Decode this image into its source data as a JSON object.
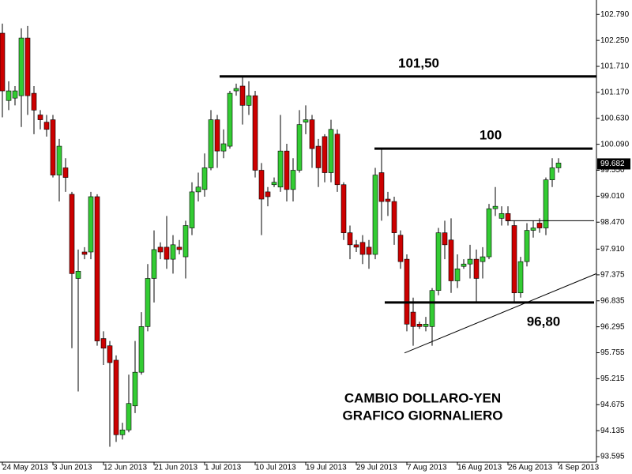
{
  "chart_data": {
    "type": "candlestick",
    "title": "CAMBIO DOLLARO-YEN",
    "subtitle": "GRAFICO GIORNALIERO",
    "up_color": "#33cc33",
    "down_color": "#cc0000",
    "categories": [
      "24 May 2013",
      null,
      null,
      null,
      null,
      null,
      null,
      null,
      "3 Jun 2013",
      null,
      null,
      null,
      null,
      null,
      null,
      null,
      "12 Jun 2013",
      null,
      null,
      null,
      null,
      null,
      null,
      null,
      "21 Jun 2013",
      null,
      null,
      null,
      null,
      null,
      null,
      null,
      "1 Jul 2013",
      null,
      null,
      null,
      null,
      null,
      null,
      null,
      "10 Jul 2013",
      null,
      null,
      null,
      null,
      null,
      null,
      null,
      "19 Jul 2013",
      null,
      null,
      null,
      null,
      null,
      null,
      null,
      "29 Jul 2013",
      null,
      null,
      null,
      null,
      null,
      null,
      null,
      "7 Aug 2013",
      null,
      null,
      null,
      null,
      null,
      null,
      null,
      "16 Aug 2013",
      null,
      null,
      null,
      null,
      null,
      null,
      null,
      "26 Aug 2013",
      null,
      null,
      null,
      null,
      null,
      null,
      null,
      "4 Sep 2013"
    ],
    "open": [
      102.4,
      101.0,
      101.05,
      101.1,
      102.3,
      101.15,
      100.7,
      100.55,
      100.6,
      99.45,
      99.6,
      99.05,
      97.3,
      97.85,
      97.85,
      99.0,
      96.05,
      95.9,
      95.6,
      94.05,
      94.15,
      94.65,
      95.35,
      96.3,
      97.3,
      97.95,
      97.95,
      97.7,
      97.95,
      97.75,
      98.35,
      99.1,
      99.15,
      99.6,
      100.6,
      99.95,
      100.05,
      101.2,
      101.3,
      100.9,
      101.1,
      99.55,
      99.1,
      99.25,
      99.2,
      99.95,
      99.15,
      99.55,
      100.55,
      100.6,
      100.05,
      100.25,
      99.5,
      100.3,
      99.25,
      98.25,
      98.0,
      98.05,
      97.95,
      97.8,
      99.5,
      98.95,
      98.9,
      98.2,
      97.7,
      96.6,
      96.35,
      96.3,
      96.3,
      97.05,
      98.25,
      98.1,
      97.25,
      97.55,
      97.6,
      97.7,
      97.65,
      97.75,
      98.75,
      98.55,
      98.65,
      98.4,
      97.0,
      97.65,
      98.3,
      98.45,
      98.35,
      99.35,
      99.6
    ],
    "high": [
      102.6,
      101.4,
      101.3,
      102.5,
      102.55,
      101.3,
      100.8,
      100.7,
      100.7,
      100.2,
      99.8,
      99.1,
      97.9,
      97.95,
      99.1,
      99.05,
      96.2,
      96.0,
      95.7,
      94.3,
      95.3,
      96.0,
      96.6,
      97.6,
      98.3,
      98.05,
      98.6,
      98.2,
      98.1,
      98.5,
      99.3,
      99.5,
      99.9,
      100.8,
      100.7,
      100.4,
      101.2,
      101.35,
      101.5,
      101.4,
      101.2,
      99.7,
      99.2,
      99.4,
      100.7,
      100.1,
      99.8,
      100.8,
      100.9,
      100.7,
      100.2,
      100.3,
      100.6,
      100.4,
      99.3,
      98.4,
      98.1,
      98.2,
      98.1,
      99.6,
      100.0,
      99.1,
      99.0,
      98.3,
      97.8,
      96.9,
      96.4,
      96.5,
      97.1,
      98.35,
      98.5,
      98.55,
      97.8,
      97.7,
      98.0,
      97.9,
      97.95,
      98.85,
      99.2,
      98.8,
      98.8,
      98.5,
      97.75,
      98.45,
      98.5,
      98.55,
      99.4,
      99.8,
      99.8
    ],
    "low": [
      100.65,
      100.8,
      100.9,
      100.45,
      100.7,
      100.3,
      100.4,
      100.25,
      99.4,
      98.9,
      99.1,
      95.85,
      94.95,
      97.7,
      97.7,
      95.9,
      95.5,
      93.8,
      93.9,
      93.95,
      94.1,
      94.5,
      95.3,
      96.2,
      96.8,
      97.7,
      97.5,
      97.4,
      97.8,
      97.3,
      98.2,
      98.9,
      99.0,
      99.55,
      99.6,
      99.8,
      100.0,
      101.1,
      100.5,
      100.7,
      99.4,
      98.2,
      98.8,
      99.2,
      99.1,
      98.9,
      98.9,
      99.5,
      100.3,
      99.6,
      99.2,
      99.3,
      99.3,
      99.1,
      98.1,
      97.7,
      97.85,
      97.6,
      97.5,
      97.7,
      98.5,
      98.6,
      98.0,
      97.5,
      96.2,
      95.9,
      96.25,
      96.2,
      95.9,
      96.95,
      97.7,
      97.0,
      97.1,
      97.5,
      97.3,
      96.8,
      97.3,
      97.7,
      98.6,
      98.4,
      98.4,
      96.8,
      96.9,
      97.55,
      98.15,
      98.25,
      98.2,
      99.2,
      99.5
    ],
    "close": [
      101.2,
      101.2,
      101.2,
      102.3,
      101.1,
      100.8,
      100.6,
      100.4,
      99.45,
      100.05,
      99.4,
      97.4,
      97.45,
      97.8,
      99.0,
      96.0,
      95.85,
      95.55,
      94.05,
      94.15,
      94.7,
      95.35,
      96.3,
      97.3,
      97.9,
      97.85,
      97.7,
      98.0,
      97.9,
      98.4,
      99.1,
      99.2,
      99.6,
      100.6,
      99.95,
      100.1,
      101.15,
      101.25,
      100.9,
      101.1,
      99.55,
      98.95,
      99.0,
      99.3,
      99.95,
      99.15,
      99.55,
      100.5,
      100.6,
      100.0,
      99.6,
      99.5,
      100.4,
      99.25,
      98.25,
      98.0,
      97.95,
      97.8,
      97.8,
      99.45,
      98.9,
      98.9,
      98.25,
      97.65,
      96.35,
      96.3,
      96.3,
      96.35,
      97.05,
      98.25,
      98.0,
      97.25,
      97.5,
      97.6,
      97.7,
      97.3,
      97.75,
      98.75,
      98.8,
      98.65,
      98.5,
      97.0,
      97.65,
      98.3,
      98.35,
      98.35,
      99.35,
      99.6,
      99.7
    ],
    "ylim": [
      93.48,
      103.09
    ],
    "yticks": [
      {
        "value": 102.79,
        "label": "102.790"
      },
      {
        "value": 102.25,
        "label": "102.250"
      },
      {
        "value": 101.71,
        "label": "101.710"
      },
      {
        "value": 101.17,
        "label": "101.170"
      },
      {
        "value": 100.63,
        "label": "100.630"
      },
      {
        "value": 100.09,
        "label": "100.090"
      },
      {
        "value": 99.55,
        "label": "99.550"
      },
      {
        "value": 99.01,
        "label": "99.010"
      },
      {
        "value": 98.47,
        "label": "98.470"
      },
      {
        "value": 97.91,
        "label": "97.910"
      },
      {
        "value": 97.375,
        "label": "97.375"
      },
      {
        "value": 96.835,
        "label": "96.835"
      },
      {
        "value": 96.295,
        "label": "96.295"
      },
      {
        "value": 95.755,
        "label": "95.755"
      },
      {
        "value": 95.215,
        "label": "95.215"
      },
      {
        "value": 94.675,
        "label": "94.675"
      },
      {
        "value": 94.135,
        "label": "94.135"
      },
      {
        "value": 93.595,
        "label": "93.595"
      }
    ],
    "last_price": {
      "value": 99.682,
      "label": "99.682"
    },
    "levels": [
      {
        "value": 101.5,
        "label": "101,50"
      },
      {
        "value": 100,
        "label": "100"
      },
      {
        "value": 96.8,
        "label": "96,80"
      },
      {
        "value": 98.5
      }
    ],
    "trendline": [
      95.75,
      97.4
    ]
  }
}
